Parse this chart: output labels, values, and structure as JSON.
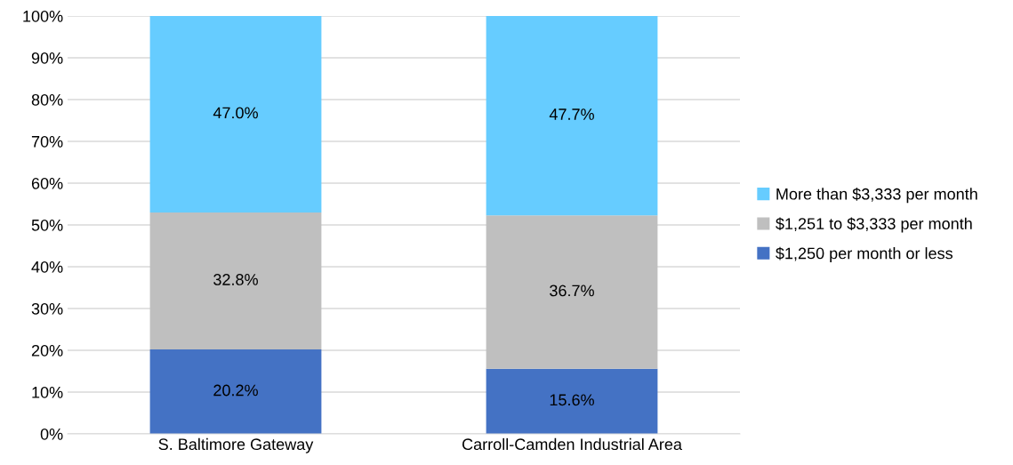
{
  "chart_data": {
    "type": "bar",
    "stacked": true,
    "categories": [
      "S. Baltimore Gateway",
      "Carroll-Camden Industrial Area"
    ],
    "series": [
      {
        "name": "$1,250 per month or less",
        "color": "#4472c4",
        "values": [
          20.2,
          15.6
        ],
        "value_labels": [
          "20.2%",
          "15.6%"
        ]
      },
      {
        "name": "$1,251 to $3,333 per month",
        "color": "#bfbfbf",
        "values": [
          32.8,
          36.7
        ],
        "value_labels": [
          "32.8%",
          "36.7%"
        ]
      },
      {
        "name": "More than $3,333 per month",
        "color": "#66ccff",
        "values": [
          47.0,
          47.7
        ],
        "value_labels": [
          "47.0%",
          "47.7%"
        ]
      }
    ],
    "ylim": [
      0,
      100
    ],
    "yticks": [
      {
        "value": 0,
        "label": "0%"
      },
      {
        "value": 10,
        "label": "10%"
      },
      {
        "value": 20,
        "label": "20%"
      },
      {
        "value": 30,
        "label": "30%"
      },
      {
        "value": 40,
        "label": "40%"
      },
      {
        "value": 50,
        "label": "50%"
      },
      {
        "value": 60,
        "label": "60%"
      },
      {
        "value": 70,
        "label": "70%"
      },
      {
        "value": 80,
        "label": "80%"
      },
      {
        "value": 90,
        "label": "90%"
      },
      {
        "value": 100,
        "label": "100%"
      }
    ],
    "grid": "y",
    "legend": "right"
  }
}
